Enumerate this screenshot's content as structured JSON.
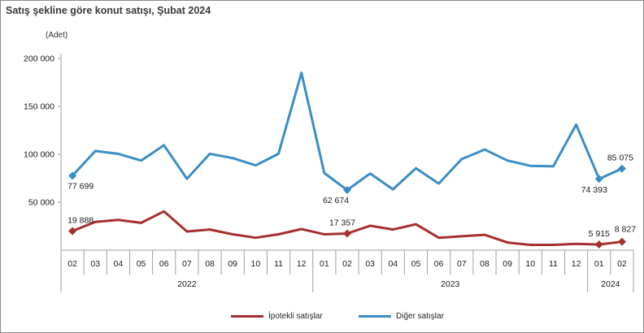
{
  "title": "Satış şekline göre konut satışı, Şubat 2024",
  "unit_label": "(Adet)",
  "chart_data": {
    "type": "line",
    "title": "Satış şekline göre konut satışı, Şubat 2024",
    "ylabel": "(Adet)",
    "ylim": [
      0,
      200000
    ],
    "yticks": [
      50000,
      100000,
      150000,
      200000
    ],
    "ytick_labels": [
      "50 000",
      "100 000",
      "150 000",
      "200 000"
    ],
    "grid": false,
    "legend_position": "bottom",
    "categories": [
      "02",
      "03",
      "04",
      "05",
      "06",
      "07",
      "08",
      "09",
      "10",
      "11",
      "12",
      "01",
      "02",
      "03",
      "04",
      "05",
      "06",
      "07",
      "08",
      "09",
      "10",
      "11",
      "12",
      "01",
      "02"
    ],
    "year_groups": [
      {
        "label": "2022",
        "start": 0,
        "end": 10
      },
      {
        "label": "2023",
        "start": 11,
        "end": 22
      },
      {
        "label": "2024",
        "start": 23,
        "end": 24
      }
    ],
    "series": [
      {
        "name": "İpotekli satışlar",
        "color": "#a6302f",
        "values": [
          19888,
          29500,
          31500,
          28500,
          40500,
          19500,
          21500,
          16500,
          13000,
          16500,
          22000,
          16500,
          17357,
          25500,
          21500,
          27000,
          13000,
          14500,
          16000,
          8000,
          5500,
          5500,
          6500,
          5915,
          8827
        ],
        "markers": [
          0,
          12,
          23,
          24
        ],
        "labels": [
          {
            "index": 0,
            "text": "19 888"
          },
          {
            "index": 12,
            "text": "17 357"
          },
          {
            "index": 23,
            "text": "5 915"
          },
          {
            "index": 24,
            "text": "8 827"
          }
        ]
      },
      {
        "name": "Diğer satışlar",
        "color": "#3b8ec5",
        "values": [
          77699,
          103500,
          100500,
          93500,
          109500,
          74500,
          100500,
          96000,
          88500,
          100500,
          185000,
          80500,
          62674,
          80000,
          63500,
          85500,
          69500,
          95000,
          105000,
          93500,
          88000,
          87500,
          131000,
          74393,
          85075
        ],
        "markers": [
          0,
          12,
          23,
          24
        ],
        "labels": [
          {
            "index": 0,
            "text": "77 699"
          },
          {
            "index": 12,
            "text": "62 674"
          },
          {
            "index": 23,
            "text": "74 393"
          },
          {
            "index": 24,
            "text": "85 075"
          }
        ]
      }
    ]
  }
}
